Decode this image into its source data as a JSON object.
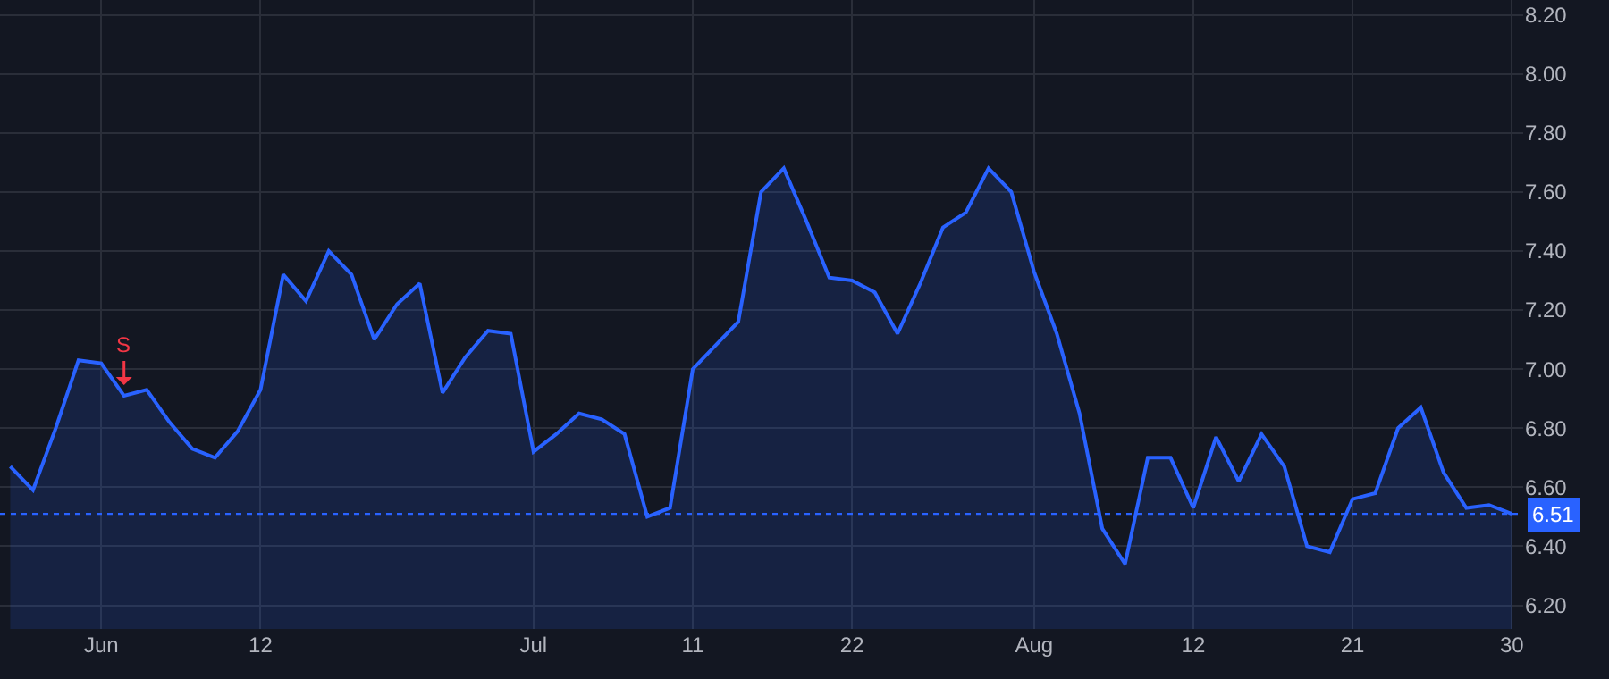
{
  "chart_data": {
    "type": "area",
    "categories": [
      null,
      null,
      null,
      null,
      "Jun",
      null,
      null,
      null,
      null,
      null,
      null,
      "12",
      null,
      null,
      null,
      null,
      null,
      null,
      null,
      null,
      null,
      null,
      null,
      "Jul",
      null,
      null,
      null,
      null,
      null,
      null,
      "11",
      null,
      null,
      null,
      null,
      null,
      null,
      "22",
      null,
      null,
      null,
      null,
      null,
      null,
      null,
      "Aug",
      null,
      null,
      null,
      null,
      null,
      null,
      "12",
      null,
      null,
      null,
      null,
      null,
      null,
      "21",
      null,
      null,
      null,
      null,
      null,
      null,
      "30"
    ],
    "values": [
      6.67,
      6.59,
      6.8,
      7.03,
      7.02,
      6.91,
      6.93,
      6.82,
      6.73,
      6.7,
      6.79,
      6.93,
      7.32,
      7.23,
      7.4,
      7.32,
      7.1,
      7.22,
      7.29,
      6.92,
      7.04,
      7.13,
      7.12,
      6.72,
      6.78,
      6.85,
      6.83,
      6.78,
      6.5,
      6.53,
      7.0,
      7.08,
      7.16,
      7.6,
      7.68,
      7.5,
      7.31,
      7.3,
      7.26,
      7.12,
      7.29,
      7.48,
      7.53,
      7.68,
      7.6,
      7.33,
      7.12,
      6.85,
      6.46,
      6.34,
      6.7,
      6.7,
      6.53,
      6.77,
      6.62,
      6.78,
      6.67,
      6.4,
      6.38,
      6.56,
      6.58,
      6.8,
      6.87,
      6.65,
      6.53,
      6.54,
      6.51
    ],
    "color": "#2962ff",
    "ylim": [
      6.12,
      8.25
    ],
    "yticks": [
      {
        "value": 6.2,
        "label": "6.20"
      },
      {
        "value": 6.4,
        "label": "6.40"
      },
      {
        "value": 6.6,
        "label": "6.60"
      },
      {
        "value": 6.8,
        "label": "6.80"
      },
      {
        "value": 7.0,
        "label": "7.00"
      },
      {
        "value": 7.2,
        "label": "7.20"
      },
      {
        "value": 7.4,
        "label": "7.40"
      },
      {
        "value": 7.6,
        "label": "7.60"
      },
      {
        "value": 7.8,
        "label": "7.80"
      },
      {
        "value": 8.0,
        "label": "8.00"
      },
      {
        "value": 8.2,
        "label": "8.20"
      }
    ],
    "grid": true,
    "ref_lines": [
      {
        "axis": "y",
        "value": 6.51,
        "label": "6.51",
        "color": "#2962ff",
        "line_style": "dotted"
      }
    ],
    "annotations": [
      {
        "text": "S",
        "y": 6.91
      }
    ]
  }
}
